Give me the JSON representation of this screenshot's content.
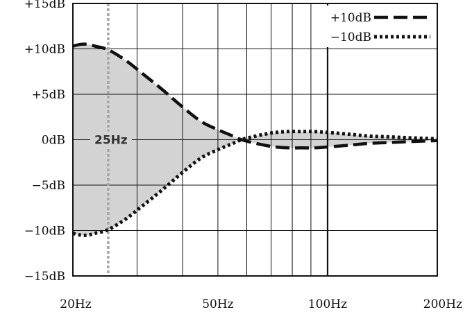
{
  "chart_data": {
    "type": "line",
    "title": "",
    "xlabel": "",
    "ylabel": "",
    "x_scale": "log",
    "xlim": [
      20,
      200
    ],
    "ylim": [
      -15,
      15
    ],
    "grid": true,
    "legend_position": "top-right",
    "x_tick_labels": [
      {
        "value": 20,
        "label": "20Hz"
      },
      {
        "value": 50,
        "label": "50Hz"
      },
      {
        "value": 100,
        "label": "100Hz"
      },
      {
        "value": 200,
        "label": "200Hz"
      }
    ],
    "y_tick_labels": [
      {
        "value": 15,
        "label": "+15dB"
      },
      {
        "value": 10,
        "label": "+10dB"
      },
      {
        "value": 5,
        "label": "+5dB"
      },
      {
        "value": 0,
        "label": "0dB"
      },
      {
        "value": -5,
        "label": "−5dB"
      },
      {
        "value": -10,
        "label": "−10dB"
      },
      {
        "value": -15,
        "label": "−15dB"
      }
    ],
    "minor_x_gridlines": [
      30,
      40,
      60,
      70,
      80,
      90
    ],
    "marker": {
      "x": 25,
      "label": "25Hz"
    },
    "fill_between_series": true,
    "series": [
      {
        "name": "+10dB",
        "style": "dashed",
        "x": [
          20,
          21,
          22,
          23,
          25,
          28,
          31,
          35,
          40,
          45,
          50,
          55,
          58,
          62,
          67,
          72,
          78,
          85,
          92,
          100,
          115,
          130,
          150,
          170,
          200
        ],
        "y": [
          10.3,
          10.5,
          10.5,
          10.3,
          9.9,
          8.7,
          7.3,
          5.6,
          3.6,
          2.0,
          1.1,
          0.4,
          0.0,
          -0.3,
          -0.6,
          -0.8,
          -0.9,
          -0.9,
          -0.9,
          -0.8,
          -0.6,
          -0.4,
          -0.3,
          -0.2,
          -0.1
        ]
      },
      {
        "name": "−10dB",
        "style": "dotted",
        "x": [
          20,
          21,
          22,
          23,
          25,
          28,
          31,
          35,
          40,
          45,
          50,
          55,
          58,
          62,
          67,
          72,
          78,
          85,
          92,
          100,
          115,
          130,
          150,
          170,
          200
        ],
        "y": [
          -10.3,
          -10.5,
          -10.5,
          -10.3,
          -9.9,
          -8.7,
          -7.3,
          -5.6,
          -3.6,
          -2.0,
          -1.1,
          -0.4,
          0.0,
          0.3,
          0.6,
          0.8,
          0.9,
          0.9,
          0.9,
          0.8,
          0.6,
          0.4,
          0.3,
          0.2,
          0.1
        ]
      }
    ],
    "colors": {
      "line": "#111111",
      "fill": "#d3d3d3",
      "grid": "#111111",
      "marker": "#a6a6a6"
    }
  }
}
